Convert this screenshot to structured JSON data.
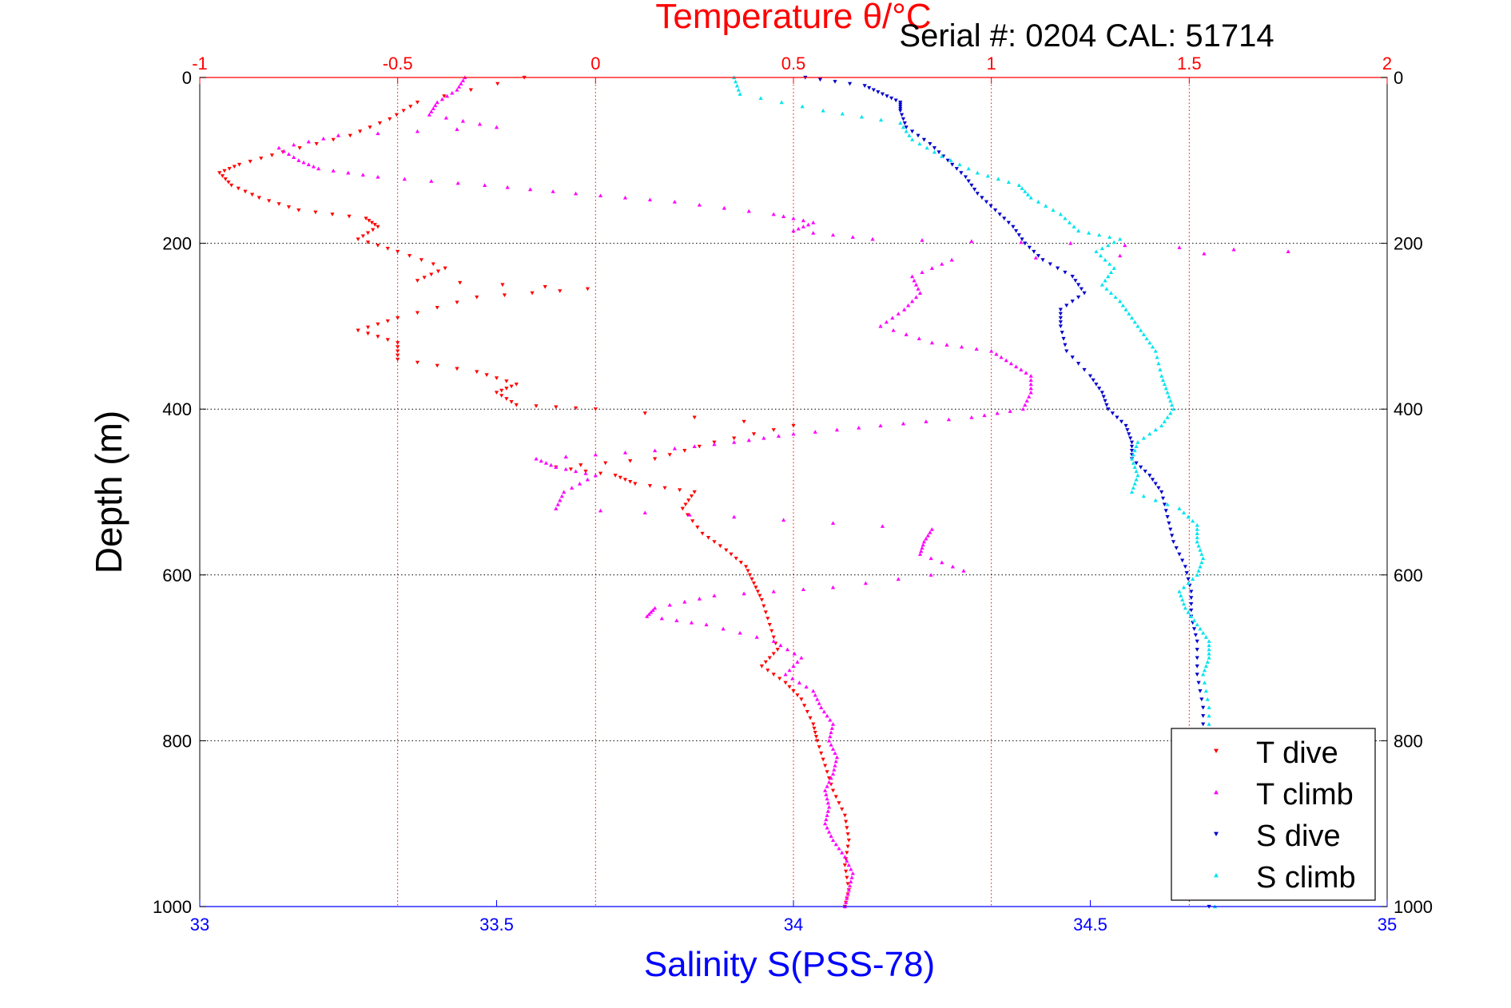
{
  "chart_data": {
    "type": "scatter",
    "title": "Temperature θ/°C",
    "subtitle": "Serial #: 0204  CAL: 51714",
    "xlabel_bottom": "Salinity S(PSS-78)",
    "xlabel_top": "Temperature θ/°C",
    "ylabel": "Depth (m)",
    "xlim_temperature": [
      -1,
      2
    ],
    "xlim_salinity": [
      33,
      35
    ],
    "ylim": [
      0,
      1000
    ],
    "y_reversed": true,
    "grid": true,
    "legend_placement": "bottom-right",
    "x_ticks_temperature": [
      "-1",
      "-0.5",
      "0",
      "0.5",
      "1",
      "1.5",
      "2"
    ],
    "x_ticks_salinity": [
      "33",
      "33.5",
      "34",
      "34.5",
      "35"
    ],
    "y_ticks": [
      "0",
      "200",
      "400",
      "600",
      "800",
      "1000"
    ],
    "colors": {
      "T dive": "#ff0000",
      "T climb": "#ff00ff",
      "S dive": "#0000cc",
      "S climb": "#00e5ee",
      "temperature_axis": "#ff0000",
      "salinity_axis": "#0000ff"
    },
    "series": [
      {
        "name": "T dive",
        "axis": "temperature",
        "marker": "triangle-down",
        "points": [
          [
            -0.18,
            0
          ],
          [
            -0.45,
            30
          ],
          [
            -0.52,
            50
          ],
          [
            -0.62,
            70
          ],
          [
            -0.79,
            90
          ],
          [
            -0.9,
            105
          ],
          [
            -0.95,
            115
          ],
          [
            -0.92,
            130
          ],
          [
            -0.85,
            145
          ],
          [
            -0.75,
            160
          ],
          [
            -0.58,
            170
          ],
          [
            -0.55,
            180
          ],
          [
            -0.6,
            195
          ],
          [
            -0.5,
            210
          ],
          [
            -0.38,
            230
          ],
          [
            -0.45,
            245
          ],
          [
            -0.02,
            255
          ],
          [
            -0.3,
            265
          ],
          [
            -0.5,
            290
          ],
          [
            -0.6,
            305
          ],
          [
            -0.5,
            320
          ],
          [
            -0.5,
            340
          ],
          [
            -0.3,
            355
          ],
          [
            -0.2,
            370
          ],
          [
            -0.25,
            380
          ],
          [
            -0.2,
            395
          ],
          [
            0,
            400
          ],
          [
            0.5,
            420
          ],
          [
            0.3,
            440
          ],
          [
            0.15,
            460
          ],
          [
            -0.1,
            470
          ],
          [
            0.05,
            480
          ],
          [
            0.1,
            490
          ],
          [
            0.25,
            500
          ],
          [
            0.22,
            520
          ],
          [
            0.27,
            550
          ],
          [
            0.33,
            570
          ],
          [
            0.38,
            590
          ],
          [
            0.4,
            610
          ],
          [
            0.42,
            630
          ],
          [
            0.44,
            660
          ],
          [
            0.46,
            690
          ],
          [
            0.42,
            710
          ],
          [
            0.48,
            730
          ],
          [
            0.52,
            750
          ],
          [
            0.55,
            780
          ],
          [
            0.56,
            800
          ],
          [
            0.58,
            830
          ],
          [
            0.6,
            860
          ],
          [
            0.63,
            890
          ],
          [
            0.64,
            920
          ],
          [
            0.63,
            950
          ],
          [
            0.64,
            980
          ],
          [
            0.63,
            1000
          ]
        ]
      },
      {
        "name": "T climb",
        "axis": "temperature",
        "marker": "triangle-up",
        "points": [
          [
            -0.33,
            0
          ],
          [
            -0.35,
            15
          ],
          [
            -0.4,
            30
          ],
          [
            -0.42,
            45
          ],
          [
            -0.25,
            60
          ],
          [
            -0.65,
            70
          ],
          [
            -0.8,
            85
          ],
          [
            -0.75,
            100
          ],
          [
            -0.7,
            110
          ],
          [
            -0.55,
            120
          ],
          [
            -0.28,
            130
          ],
          [
            -0.05,
            140
          ],
          [
            0.2,
            150
          ],
          [
            0.45,
            165
          ],
          [
            0.55,
            175
          ],
          [
            0.5,
            185
          ],
          [
            0.7,
            195
          ],
          [
            1.2,
            200
          ],
          [
            1.75,
            210
          ],
          [
            0.9,
            220
          ],
          [
            0.8,
            240
          ],
          [
            0.82,
            260
          ],
          [
            0.78,
            280
          ],
          [
            0.72,
            300
          ],
          [
            0.85,
            320
          ],
          [
            1.0,
            330
          ],
          [
            1.05,
            345
          ],
          [
            1.1,
            360
          ],
          [
            1.1,
            380
          ],
          [
            1.08,
            400
          ],
          [
            0.95,
            410
          ],
          [
            0.72,
            420
          ],
          [
            0.5,
            430
          ],
          [
            0.35,
            440
          ],
          [
            0.15,
            450
          ],
          [
            -0.15,
            460
          ],
          [
            -0.1,
            470
          ],
          [
            0,
            480
          ],
          [
            -0.08,
            500
          ],
          [
            -0.1,
            520
          ],
          [
            0.35,
            530
          ],
          [
            0.85,
            545
          ],
          [
            0.83,
            560
          ],
          [
            0.82,
            575
          ],
          [
            0.93,
            595
          ],
          [
            0.6,
            615
          ],
          [
            0.3,
            625
          ],
          [
            0.15,
            640
          ],
          [
            0.13,
            650
          ],
          [
            0.28,
            660
          ],
          [
            0.45,
            680
          ],
          [
            0.52,
            700
          ],
          [
            0.48,
            720
          ],
          [
            0.55,
            740
          ],
          [
            0.57,
            760
          ],
          [
            0.6,
            780
          ],
          [
            0.59,
            800
          ],
          [
            0.61,
            820
          ],
          [
            0.6,
            840
          ],
          [
            0.58,
            860
          ],
          [
            0.59,
            880
          ],
          [
            0.58,
            900
          ],
          [
            0.6,
            920
          ],
          [
            0.63,
            940
          ],
          [
            0.65,
            960
          ],
          [
            0.64,
            980
          ],
          [
            0.63,
            1000
          ]
        ]
      },
      {
        "name": "S dive",
        "axis": "salinity",
        "marker": "triangle-down",
        "points": [
          [
            34.02,
            0
          ],
          [
            34.12,
            10
          ],
          [
            34.15,
            20
          ],
          [
            34.18,
            30
          ],
          [
            34.18,
            40
          ],
          [
            34.19,
            60
          ],
          [
            34.23,
            80
          ],
          [
            34.26,
            100
          ],
          [
            34.29,
            120
          ],
          [
            34.31,
            140
          ],
          [
            34.34,
            160
          ],
          [
            34.37,
            180
          ],
          [
            34.39,
            200
          ],
          [
            34.42,
            220
          ],
          [
            34.47,
            240
          ],
          [
            34.49,
            260
          ],
          [
            34.45,
            280
          ],
          [
            34.45,
            300
          ],
          [
            34.46,
            330
          ],
          [
            34.5,
            360
          ],
          [
            34.52,
            380
          ],
          [
            34.53,
            400
          ],
          [
            34.56,
            420
          ],
          [
            34.57,
            440
          ],
          [
            34.57,
            460
          ],
          [
            34.6,
            480
          ],
          [
            34.62,
            500
          ],
          [
            34.63,
            530
          ],
          [
            34.64,
            560
          ],
          [
            34.66,
            590
          ],
          [
            34.67,
            620
          ],
          [
            34.67,
            650
          ],
          [
            34.68,
            680
          ],
          [
            34.68,
            720
          ],
          [
            34.69,
            760
          ],
          [
            34.69,
            800
          ],
          [
            34.7,
            900
          ],
          [
            34.7,
            1000
          ]
        ]
      },
      {
        "name": "S climb",
        "axis": "salinity",
        "marker": "triangle-up",
        "points": [
          [
            33.9,
            0
          ],
          [
            33.91,
            20
          ],
          [
            34.05,
            40
          ],
          [
            34.18,
            55
          ],
          [
            34.2,
            75
          ],
          [
            34.25,
            95
          ],
          [
            34.31,
            115
          ],
          [
            34.38,
            130
          ],
          [
            34.4,
            145
          ],
          [
            34.45,
            165
          ],
          [
            34.48,
            185
          ],
          [
            34.55,
            195
          ],
          [
            34.51,
            210
          ],
          [
            34.54,
            230
          ],
          [
            34.52,
            250
          ],
          [
            34.55,
            270
          ],
          [
            34.57,
            290
          ],
          [
            34.59,
            310
          ],
          [
            34.61,
            330
          ],
          [
            34.62,
            360
          ],
          [
            34.63,
            380
          ],
          [
            34.64,
            400
          ],
          [
            34.62,
            420
          ],
          [
            34.58,
            440
          ],
          [
            34.57,
            460
          ],
          [
            34.58,
            480
          ],
          [
            34.57,
            500
          ],
          [
            34.65,
            520
          ],
          [
            34.68,
            540
          ],
          [
            34.68,
            560
          ],
          [
            34.69,
            580
          ],
          [
            34.68,
            600
          ],
          [
            34.65,
            620
          ],
          [
            34.66,
            640
          ],
          [
            34.68,
            660
          ],
          [
            34.7,
            680
          ],
          [
            34.7,
            700
          ],
          [
            34.69,
            720
          ],
          [
            34.7,
            760
          ],
          [
            34.7,
            800
          ],
          [
            34.71,
            900
          ],
          [
            34.71,
            1000
          ]
        ]
      }
    ]
  }
}
